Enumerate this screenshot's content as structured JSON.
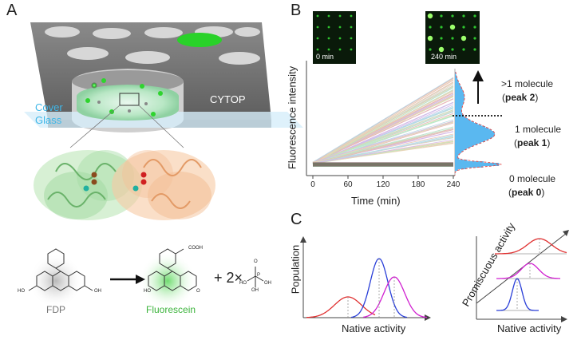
{
  "panel_a": {
    "letter": "A",
    "cytop_label": "CYTOP",
    "cover_glass_label_1": "Cover",
    "cover_glass_label_2": "Glass",
    "reaction": {
      "substrate": "FDP",
      "product": "Fluorescein",
      "plus_text": "+ 2×",
      "cooh_label": "COOH",
      "o_label": "O",
      "ho_label": "HO",
      "p_label": "P",
      "oh_label": "OH"
    },
    "colors": {
      "substrate_glow": "#bdbdbd",
      "product_glow": "#7fe07f",
      "product_text": "#3cb43c",
      "cover_glass": "#3fb7e8"
    }
  },
  "panel_b": {
    "letter": "B",
    "inset_left_label": "0 min",
    "inset_right_label": "240 min",
    "ylabel": "Fluorescence intensity",
    "xlabel": "Time (min)",
    "peaks": [
      {
        "title": ">1 molecule",
        "name": "peak 2"
      },
      {
        "title": "1 molecule",
        "name": "peak 1"
      },
      {
        "title": "0 molecule",
        "name": "peak 0"
      }
    ],
    "colors": {
      "histogram": "#5ab8f0",
      "fit": "#e05050"
    }
  },
  "panel_c": {
    "letter": "C",
    "left_ylabel": "Population",
    "left_xlabel": "Native activity",
    "right_ylabel": "Promiscuous activity",
    "right_xlabel": "Native activity",
    "colors": {
      "red": "#e03030",
      "blue": "#2a3fd8",
      "magenta": "#d020d0"
    }
  },
  "chart_data": {
    "type": "line",
    "x": [
      0,
      60,
      120,
      180,
      240
    ],
    "xlim": [
      0,
      240
    ],
    "xlabel": "Time (min)",
    "ylabel": "Fluorescence intensity"
  }
}
